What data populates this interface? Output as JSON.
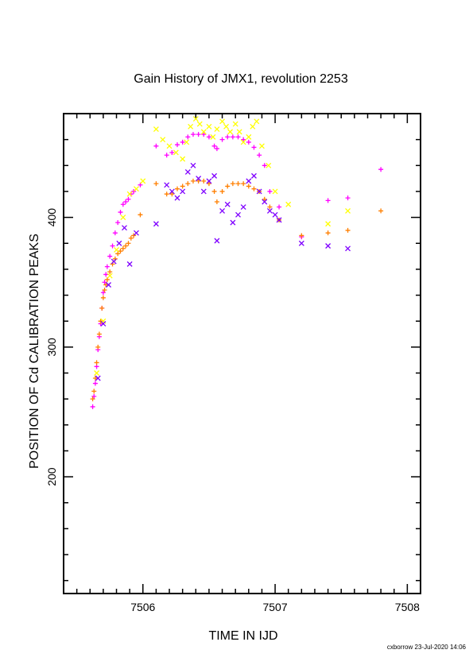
{
  "chart_data": {
    "type": "scatter",
    "title": "Gain History of JMX1, revolution 2253",
    "xlabel": "TIME IN IJD",
    "ylabel": "POSITION OF Cd CALIBRATION PEAKS",
    "xlim": [
      7505.4,
      7508.1
    ],
    "ylim": [
      110,
      480
    ],
    "xticks": [
      7506,
      7507,
      7508
    ],
    "yticks": [
      200,
      300,
      400
    ],
    "grid": false,
    "legend": "none",
    "footer": "cxborrow 23-Jul-2020 14:06",
    "series": [
      {
        "color": "#ff00ff",
        "marker": "plus",
        "x": [
          7505.62,
          7505.63,
          7505.64,
          7505.65,
          7505.66,
          7505.67,
          7505.68,
          7505.69,
          7505.7,
          7505.71,
          7505.72,
          7505.73,
          7505.75,
          7505.77,
          7505.79,
          7505.81,
          7505.83,
          7505.85,
          7505.87,
          7505.89,
          7505.91,
          7505.93,
          7505.98,
          7506.1,
          7506.18,
          7506.22,
          7506.26,
          7506.3,
          7506.34,
          7506.38,
          7506.42,
          7506.46,
          7506.5,
          7506.54,
          7506.56,
          7506.6,
          7506.64,
          7506.68,
          7506.72,
          7506.76,
          7506.8,
          7506.84,
          7506.88,
          7506.92,
          7506.96,
          7507.03,
          7507.2,
          7507.4,
          7507.55,
          7507.8
        ],
        "y": [
          254,
          262,
          272,
          285,
          298,
          308,
          318,
          330,
          342,
          350,
          356,
          362,
          370,
          378,
          388,
          396,
          404,
          410,
          412,
          414,
          418,
          420,
          425,
          455,
          448,
          450,
          456,
          458,
          462,
          464,
          464,
          464,
          462,
          455,
          453,
          460,
          462,
          462,
          462,
          460,
          458,
          454,
          448,
          440,
          420,
          408,
          385,
          413,
          415,
          437
        ]
      },
      {
        "color": "#ff7f00",
        "marker": "plus",
        "x": [
          7505.62,
          7505.63,
          7505.64,
          7505.65,
          7505.66,
          7505.67,
          7505.68,
          7505.69,
          7505.7,
          7505.71,
          7505.72,
          7505.73,
          7505.75,
          7505.77,
          7505.79,
          7505.81,
          7505.83,
          7505.85,
          7505.87,
          7505.89,
          7505.91,
          7505.93,
          7505.98,
          7506.1,
          7506.18,
          7506.22,
          7506.26,
          7506.3,
          7506.34,
          7506.38,
          7506.42,
          7506.46,
          7506.5,
          7506.54,
          7506.56,
          7506.6,
          7506.64,
          7506.68,
          7506.72,
          7506.76,
          7506.8,
          7506.84,
          7506.88,
          7506.92,
          7506.96,
          7507.03,
          7507.2,
          7507.4,
          7507.55,
          7507.8
        ],
        "y": [
          260,
          266,
          276,
          288,
          300,
          310,
          320,
          330,
          338,
          344,
          348,
          352,
          358,
          364,
          368,
          372,
          374,
          376,
          378,
          380,
          384,
          386,
          402,
          426,
          418,
          418,
          422,
          424,
          426,
          428,
          428,
          428,
          426,
          420,
          412,
          420,
          424,
          426,
          426,
          426,
          424,
          422,
          420,
          414,
          408,
          398,
          386,
          388,
          390,
          405
        ]
      },
      {
        "color": "#ffff00",
        "marker": "cross",
        "x": [
          7505.65,
          7505.7,
          7505.75,
          7505.8,
          7505.85,
          7505.9,
          7505.95,
          7506.0,
          7506.1,
          7506.15,
          7506.2,
          7506.25,
          7506.3,
          7506.33,
          7506.36,
          7506.4,
          7506.43,
          7506.46,
          7506.5,
          7506.53,
          7506.56,
          7506.6,
          7506.63,
          7506.66,
          7506.7,
          7506.73,
          7506.76,
          7506.8,
          7506.83,
          7506.86,
          7506.9,
          7506.95,
          7507.0,
          7507.1,
          7507.4,
          7507.55
        ],
        "y": [
          280,
          320,
          355,
          375,
          400,
          418,
          422,
          428,
          468,
          460,
          455,
          450,
          445,
          458,
          470,
          476,
          472,
          466,
          470,
          462,
          468,
          474,
          470,
          466,
          472,
          466,
          458,
          462,
          470,
          474,
          455,
          440,
          420,
          410,
          395,
          405
        ]
      },
      {
        "color": "#7f00ff",
        "marker": "cross",
        "x": [
          7505.66,
          7505.7,
          7505.74,
          7505.78,
          7505.82,
          7505.86,
          7505.9,
          7505.95,
          7506.1,
          7506.18,
          7506.22,
          7506.26,
          7506.3,
          7506.34,
          7506.38,
          7506.42,
          7506.46,
          7506.5,
          7506.54,
          7506.56,
          7506.6,
          7506.64,
          7506.68,
          7506.72,
          7506.76,
          7506.8,
          7506.84,
          7506.88,
          7506.92,
          7506.96,
          7507.0,
          7507.03,
          7507.2,
          7507.4,
          7507.55
        ],
        "y": [
          276,
          318,
          348,
          366,
          380,
          392,
          364,
          388,
          395,
          425,
          420,
          415,
          420,
          435,
          440,
          430,
          420,
          428,
          432,
          382,
          405,
          410,
          396,
          402,
          408,
          428,
          432,
          420,
          412,
          405,
          402,
          398,
          380,
          378,
          376
        ]
      }
    ]
  }
}
